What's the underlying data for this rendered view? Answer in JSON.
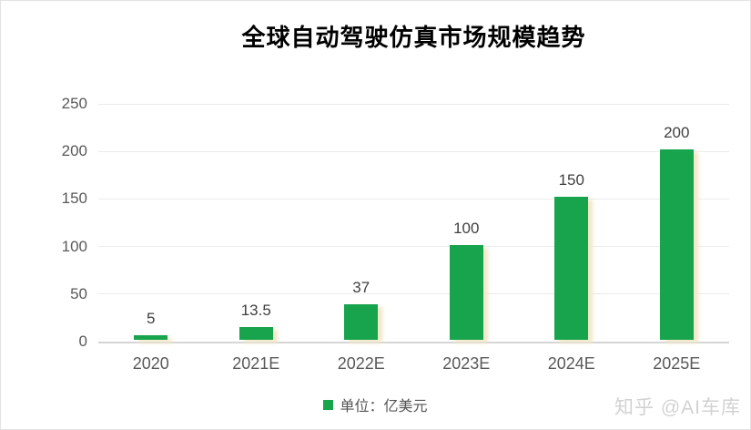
{
  "header": {
    "title": "全球自动驾驶仿真市场规模趋势"
  },
  "chart_data": {
    "type": "bar",
    "title": "全球自动驾驶仿真市场规模趋势",
    "categories": [
      "2020",
      "2021E",
      "2022E",
      "2023E",
      "2024E",
      "2025E"
    ],
    "values": [
      5,
      13.5,
      37,
      100,
      150,
      200
    ],
    "data_labels": [
      "5",
      "13.5",
      "37",
      "100",
      "150",
      "200"
    ],
    "xlabel": "",
    "ylabel": "",
    "ylim": [
      0,
      250
    ],
    "yticks": [
      250,
      200,
      150,
      100,
      50,
      0
    ],
    "grid": true,
    "legend": {
      "label": "单位：亿美元",
      "position": "bottom-center"
    }
  },
  "watermark": {
    "text": "知乎 @AI车库"
  },
  "colors": {
    "bar": "#18A34D",
    "bar_shadow": "#F3E7C8",
    "gridline": "#EBEBEB",
    "axis_line": "#D5D5D5",
    "axis_text": "#595959",
    "data_label": "#3F3F3F",
    "title_text": "#000000",
    "legend_text": "#555555",
    "watermark_text": "#D2D2D2",
    "background": "#FFFFFF"
  }
}
